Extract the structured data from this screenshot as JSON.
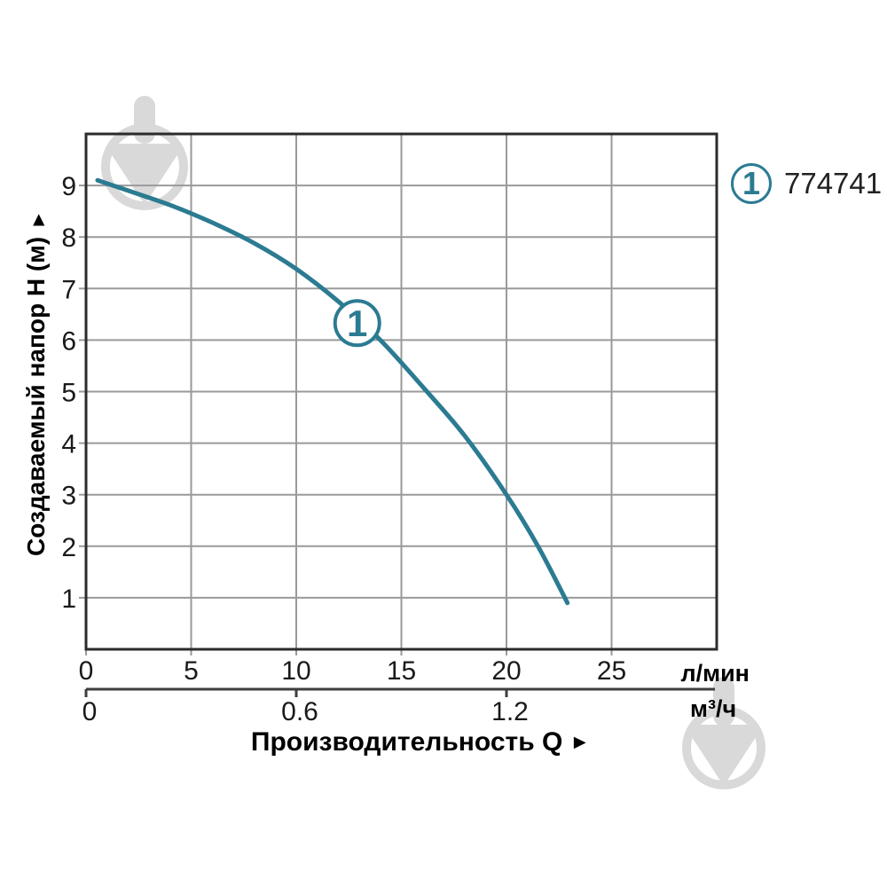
{
  "page": {
    "background": "#ffffff"
  },
  "chart_data": {
    "type": "line",
    "title": "",
    "xlabel": "Производительность Q",
    "xlabel_arrow": "►",
    "ylabel": "Создаваемый напор H (м)",
    "ylabel_arrow": "►",
    "grid": true,
    "x_axis_primary": {
      "unit": "л/мин",
      "tick_labels": [
        "0",
        "5",
        "10",
        "15",
        "20",
        "25"
      ],
      "tick_values": [
        0,
        5,
        10,
        15,
        20,
        25
      ],
      "range": [
        0,
        30
      ],
      "gridline_step": 5
    },
    "x_axis_secondary": {
      "unit": "м³/ч",
      "tick_labels": [
        "0",
        "0.6",
        "1.2"
      ],
      "tick_values_in_lmin": [
        0,
        10,
        20
      ]
    },
    "y_axis": {
      "tick_labels": [
        "1",
        "2",
        "3",
        "4",
        "5",
        "6",
        "7",
        "8",
        "9"
      ],
      "tick_values": [
        1,
        2,
        3,
        4,
        5,
        6,
        7,
        8,
        9
      ],
      "range": [
        0,
        10
      ],
      "gridline_step": 1
    },
    "legend": {
      "position": "top-right",
      "items": [
        {
          "symbol": "1",
          "label": "774741"
        }
      ]
    },
    "series": [
      {
        "name": "1",
        "color": "#2b7b92",
        "marker": {
          "label": "1",
          "q": 12.9,
          "h": 6.33
        },
        "points_q_h": [
          [
            0.55,
            9.1
          ],
          [
            2,
            8.9
          ],
          [
            4,
            8.62
          ],
          [
            6,
            8.28
          ],
          [
            8,
            7.88
          ],
          [
            10,
            7.38
          ],
          [
            12,
            6.75
          ],
          [
            14,
            6.0
          ],
          [
            16,
            5.1
          ],
          [
            18,
            4.15
          ],
          [
            20,
            3.0
          ],
          [
            21.5,
            2.0
          ],
          [
            22.9,
            0.9
          ]
        ]
      }
    ]
  },
  "colors": {
    "background": "#ffffff",
    "grid": "#9a9a9a",
    "plot_border": "#2b2b2b",
    "secondary_axis": "#3e3e3e",
    "tick_text": "#1a1a1a",
    "label_text": "#000000",
    "series_teal": "#2b7b92",
    "legend_text": "#222222",
    "watermark": "#d9d9d9"
  },
  "watermarks": [
    {
      "name": "down-arrow-logo"
    },
    {
      "name": "down-arrow-logo"
    }
  ]
}
